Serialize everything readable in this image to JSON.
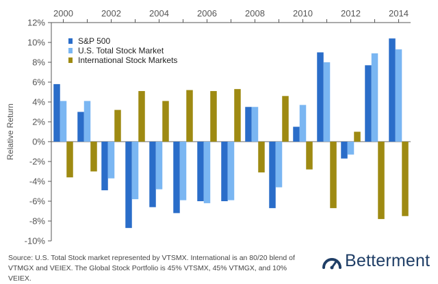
{
  "chart_data": {
    "type": "bar",
    "ylabel": "Relative Return",
    "ylim": [
      -10,
      12
    ],
    "y_ticks": [
      "12%",
      "10%",
      "8%",
      "6%",
      "4%",
      "2%",
      "0%",
      "-2%",
      "-4%",
      "-6%",
      "-8%",
      "-10%"
    ],
    "y_tick_values": [
      12,
      10,
      8,
      6,
      4,
      2,
      0,
      -2,
      -4,
      -6,
      -8,
      -10
    ],
    "categories": [
      "2000",
      "2001",
      "2002",
      "2003",
      "2004",
      "2005",
      "2006",
      "2007",
      "2008",
      "2009",
      "2010",
      "2011",
      "2012",
      "2013",
      "2014"
    ],
    "x_tick_labels": [
      "2000",
      "2002",
      "2004",
      "2006",
      "2008",
      "2010",
      "2012",
      "2014"
    ],
    "x_axis_position": "top",
    "grid": false,
    "legend_position": "top-left",
    "series": [
      {
        "name": "S&P 500",
        "color": "#2a6dc9",
        "values": [
          5.8,
          3.0,
          -4.9,
          -8.7,
          -6.6,
          -7.2,
          -6.0,
          -6.0,
          3.5,
          -6.7,
          1.5,
          9.0,
          -1.7,
          7.7,
          10.4
        ]
      },
      {
        "name": "U.S. Total Stock Market",
        "color": "#7ab6f2",
        "values": [
          4.1,
          4.1,
          -3.7,
          -5.8,
          -4.8,
          -5.9,
          -6.2,
          -5.9,
          3.5,
          -4.6,
          3.7,
          8.0,
          -1.3,
          8.9,
          9.3
        ]
      },
      {
        "name": "International Stock Markets",
        "color": "#9e8a12",
        "values": [
          -3.6,
          -3.0,
          3.2,
          5.1,
          4.1,
          5.2,
          5.1,
          5.3,
          -3.1,
          4.6,
          -2.8,
          -6.7,
          1.0,
          -7.8,
          -7.5
        ]
      }
    ]
  },
  "footnote": {
    "line1": "Source: U.S. Total Stock market represented by VTSMX. International is an 80/20 blend of",
    "line2": "VTMGX and VEIEX. The Global Stock Portfolio is 45% VTSMX, 45% VTMGX, and 10% VEIEX."
  },
  "brand": {
    "name": "Betterment",
    "logo_icon": "gauge-icon",
    "color": "#1f3e66"
  }
}
